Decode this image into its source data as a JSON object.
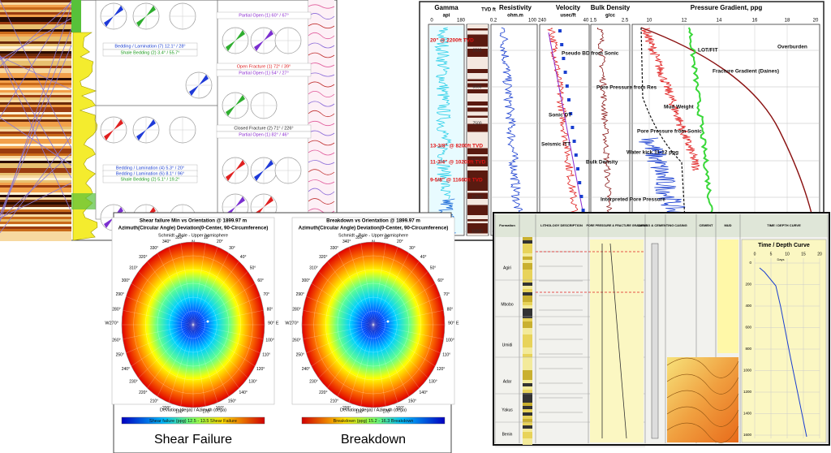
{
  "log_panel": {
    "labels": [
      "Bedding / Lamination (7) 12.1° / 28°",
      "Shale Bedding (2) 3.4° / 55.7°",
      "Partial Open (1) 60° / 67°",
      "Open Fracture (1) 72° / 39°",
      "Partial Open (1) 54° / 27°",
      "Closed Fracture (2) 71° / 226°",
      "Partial Open (1) 82° / 46°",
      "Bedding / Lamination (4) 5.3° / 20°",
      "Bedding / Lamination (6) 8.1° / 96°",
      "Shale Bedding (2) 5.1° / 19.2°",
      "Partial Open (8) 60° / 256°"
    ]
  },
  "pressure_panel": {
    "headers": [
      "Gamma",
      "api",
      "TVD ft",
      "Resistivity",
      "ohm.m",
      "Velocity",
      "usec/ft",
      "Bulk Density",
      "g/cc",
      "Pressure Gradient, ppg"
    ],
    "gamma_scale": [
      "0",
      "180"
    ],
    "res_scale": [
      "0.2",
      "100"
    ],
    "vel_scale": [
      "240",
      "40"
    ],
    "den_scale": [
      "1.5",
      "2.5"
    ],
    "pressure_scale": [
      "10",
      "12",
      "14",
      "16",
      "18",
      "20"
    ],
    "depths": [
      "2500",
      "5000",
      "7500",
      "10000",
      "12500",
      "15000"
    ],
    "casing": [
      "20\" @ 2200ft TVD",
      "13-3/8\" @ 8200ft TVD",
      "11-3/4\" @ 10200ft TVD",
      "9-5/8\" @ 11660ft TVD"
    ],
    "annotations": [
      "Overburden",
      "LOT/FIT",
      "Fracture Gradient (Daines)",
      "Pseudo BD from Sonic",
      "Pore Pressure from Res",
      "Mud Weight",
      "Sonic DT",
      "Pore Pressure from Sonic",
      "Seismic ITT",
      "Water kick 11-12 ppg",
      "Bulk Density",
      "Interpreted Pore Pressure"
    ]
  },
  "stereo_panel": {
    "plots": [
      {
        "title": "Shear failure Min vs Orientation @ 1899.97 m",
        "colorbar": "Shear failure (ppg) 12.5 - 13.5 Shear Failure",
        "caption": "Shear Failure"
      },
      {
        "title": "Breakdown vs Orientation @ 1899.97 m",
        "colorbar": "Breakdown (ppg) 15.2 - 16.3 Breakdown",
        "caption": "Breakdown"
      }
    ],
    "subtitle": "Azimuth(Circular Angle) Deviation(0-Center, 90-Circumference)",
    "projection": "Schmidt - Pole - Upper hemisphere",
    "north": "N",
    "south": "S",
    "west": "W270°",
    "east": "90° E",
    "angles": [
      "0°",
      "10°",
      "20°",
      "30°",
      "40°",
      "50°",
      "60°",
      "70°",
      "80°",
      "90°",
      "100°",
      "110°",
      "120°",
      "130°",
      "140°",
      "150°",
      "160°",
      "170°",
      "180°",
      "190°",
      "200°",
      "210°",
      "220°",
      "230°",
      "240°",
      "250°",
      "260°",
      "270°",
      "280°",
      "290°",
      "300°",
      "310°",
      "320°",
      "330°",
      "340°",
      "350°"
    ],
    "axis_note": "Deviation (dega) / Azimuth (dega)"
  },
  "casing_panel": {
    "headers": [
      "Formation",
      "LITHOLOGY DESCRIPTION",
      "PORE PRESSURE & FRACTURE GRADIENT",
      "CASING & CEMENTING",
      "CASING",
      "CEMENT",
      "MUD",
      "TIME / DEPTH CURVE"
    ],
    "formations": [
      "Agiri",
      "Mbobo",
      "Umidi",
      "Adar",
      "Yakus",
      "Benin"
    ],
    "chart_title": "Time / Depth Curve",
    "days": "Days",
    "x_ticks": [
      "0",
      "5",
      "10",
      "15",
      "20"
    ],
    "y_ticks": [
      "0",
      "200",
      "400",
      "600",
      "800",
      "1000",
      "1200",
      "1400",
      "1600"
    ]
  }
}
